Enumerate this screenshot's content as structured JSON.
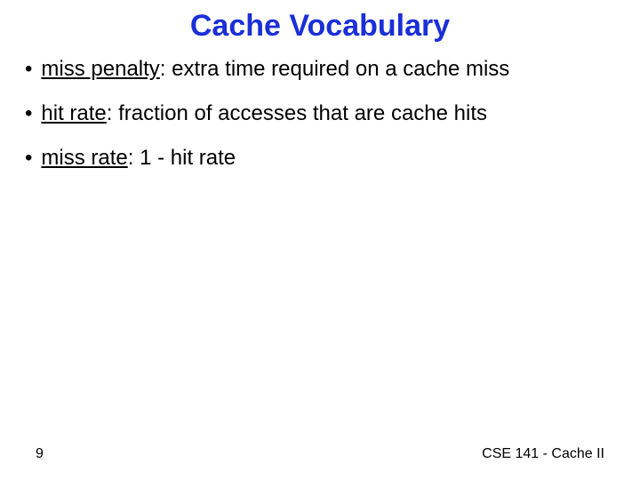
{
  "slide": {
    "title": "Cache Vocabulary",
    "title_color": "#1a2fd8",
    "title_fontsize": 34,
    "body_fontsize": 24,
    "body_color": "#000000",
    "bullets": [
      {
        "term": "miss penalty",
        "definition": ": extra time required on a cache miss"
      },
      {
        "term": "hit rate",
        "definition": ": fraction of accesses that are cache hits"
      },
      {
        "term": "miss rate",
        "definition": ": 1 - hit rate"
      }
    ],
    "page_number": "9",
    "footer_text": "CSE 141 - Cache II",
    "background_color": "#ffffff",
    "font_family": "Comic Sans MS"
  }
}
